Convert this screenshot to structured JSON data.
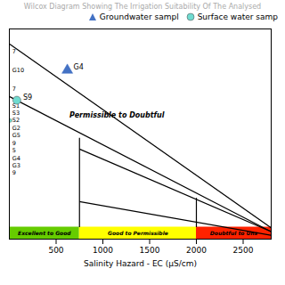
{
  "chart_data": {
    "type": "scatter",
    "title": "Wilcox Diagram Showing The Irrigation Suitability Of The Analysed",
    "xlabel": "Salinity Hazard - EC (μS/cm)",
    "xlim": [
      0,
      2800
    ],
    "ylim": [
      0,
      28
    ],
    "xticks": [
      500,
      1000,
      1500,
      2000,
      2500
    ],
    "tick_labels": "x",
    "legend": "upper right",
    "series": [
      {
        "name": "Groundwater sampl",
        "color": "#4472c4",
        "marker": "triangle",
        "x": [
          620
        ],
        "y": [
          22.5
        ],
        "point_labels": [
          "G4"
        ]
      },
      {
        "name": "Surface water samp",
        "color": "#70dbd0",
        "marker": "circle",
        "x": [
          80
        ],
        "y": [
          18.5
        ],
        "point_labels": [
          "S9"
        ]
      }
    ],
    "zone_bands": [
      {
        "xmin": 0,
        "xmax": 750,
        "ymin": 0,
        "ymax": 1.6,
        "color": "#66cc00",
        "label": "Excellent to Good"
      },
      {
        "xmin": 750,
        "xmax": 2000,
        "ymin": 0,
        "ymax": 1.6,
        "color": "#ffff00",
        "label": "Good to Permissible"
      },
      {
        "xmin": 2000,
        "xmax": 2800,
        "ymin": 0,
        "ymax": 1.6,
        "color": "#ff2200",
        "label": "Doubtful to Uns"
      }
    ],
    "lines": [
      {
        "x1": 0,
        "y1": 26,
        "x2": 2800,
        "y2": 1.5
      },
      {
        "x1": 0,
        "y1": 19,
        "x2": 2800,
        "y2": 1.0
      },
      {
        "x1": 750,
        "y1": 12,
        "x2": 2800,
        "y2": 1.0
      },
      {
        "x1": 750,
        "y1": 5,
        "x2": 2800,
        "y2": 0.5
      },
      {
        "x1": 750,
        "y1": 1.6,
        "x2": 750,
        "y2": 13.5
      },
      {
        "x1": 2000,
        "y1": 1.6,
        "x2": 2000,
        "y2": 5.5
      }
    ],
    "region_label": {
      "text": "Permissible to Doubtful",
      "x": 1150,
      "y": 16.5,
      "color": "#ffaa00"
    },
    "left_cluster_labels": [
      {
        "text": "7",
        "x": 12,
        "y": 25.0
      },
      {
        "text": "G10",
        "x": 12,
        "y": 22.5
      },
      {
        "text": "7",
        "x": 12,
        "y": 20.0
      },
      {
        "text": "S1",
        "x": 12,
        "y": 17.8
      },
      {
        "text": "S3",
        "x": 12,
        "y": 16.8
      },
      {
        "text": "S2",
        "x": 12,
        "y": 15.8,
        "dot_x": 8,
        "dot_color": "#70dbd0"
      },
      {
        "text": "G2",
        "x": 12,
        "y": 14.8
      },
      {
        "text": "G5",
        "x": 12,
        "y": 13.8
      },
      {
        "text": "9",
        "x": 12,
        "y": 12.8
      },
      {
        "text": "5",
        "x": 12,
        "y": 11.8
      },
      {
        "text": "G4",
        "x": 12,
        "y": 10.8
      },
      {
        "text": "G3",
        "x": 12,
        "y": 9.8
      },
      {
        "text": "9",
        "x": 12,
        "y": 8.8
      }
    ]
  }
}
